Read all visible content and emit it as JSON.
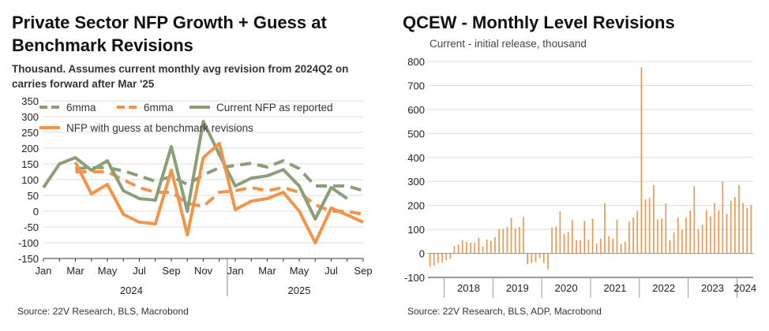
{
  "left": {
    "title": "Private Sector NFP Growth + Guess at Benchmark Revisions",
    "subtitle": "Thousand. Assumes current monthly avg revision from 2024Q2 on carries forward after Mar '25",
    "source": "Source: 22V Research, BLS, Macrobond"
  },
  "right": {
    "title": "QCEW - Monthly Level Revisions",
    "subtitle": "Current - initial release, thousand",
    "source": "Source: 22V Research, BLS, ADP, Macrobond"
  },
  "colors": {
    "green": "#8a9e78",
    "orange": "#f2954a",
    "grid": "#dcdcdc",
    "axis": "#333333"
  },
  "chart_data": [
    {
      "type": "line",
      "x": [
        "2024-01",
        "2024-02",
        "2024-03",
        "2024-04",
        "2024-05",
        "2024-06",
        "2024-07",
        "2024-08",
        "2024-09",
        "2024-10",
        "2024-11",
        "2024-12",
        "2025-01",
        "2025-02",
        "2025-03",
        "2025-04",
        "2025-05",
        "2025-06",
        "2025-07",
        "2025-08",
        "2025-09"
      ],
      "x_ticks": [
        "Jan",
        "Mar",
        "May",
        "Jul",
        "Sep",
        "Nov",
        "Jan",
        "Mar",
        "May",
        "Jul",
        "Sep"
      ],
      "x_tick_months": [
        "2024-01",
        "2024-03",
        "2024-05",
        "2024-07",
        "2024-09",
        "2024-11",
        "2025-01",
        "2025-03",
        "2025-05",
        "2025-07",
        "2025-09"
      ],
      "year_labels": [
        "2024",
        "2025"
      ],
      "ylim": [
        -150,
        350
      ],
      "y_ticks": [
        350,
        300,
        250,
        200,
        150,
        100,
        50,
        0,
        -50,
        -100,
        -150
      ],
      "legend": [
        "6mma",
        "6mma",
        "Current NFP as reported",
        "NFP with guess at benchmark revisions"
      ],
      "legend_position": "top",
      "grid": true,
      "series": [
        {
          "name": "Current NFP as reported",
          "style": "solid",
          "color": "green",
          "values": [
            75,
            150,
            170,
            130,
            160,
            65,
            40,
            35,
            205,
            0,
            285,
            180,
            80,
            105,
            112,
            132,
            80,
            -25,
            75,
            40,
            null
          ]
        },
        {
          "name": "NFP with guess at benchmark revisions",
          "style": "solid",
          "color": "orange",
          "values": [
            null,
            null,
            155,
            55,
            85,
            -10,
            -35,
            -40,
            130,
            -75,
            170,
            215,
            5,
            32,
            40,
            60,
            0,
            -100,
            10,
            -12,
            -35
          ]
        },
        {
          "name": "6mma",
          "style": "dashed",
          "color": "green",
          "values": [
            null,
            null,
            135,
            138,
            138,
            128,
            112,
            95,
            110,
            85,
            115,
            138,
            145,
            152,
            140,
            160,
            135,
            80,
            80,
            80,
            65
          ]
        },
        {
          "name": "6mma",
          "style": "dashed",
          "color": "orange",
          "values": [
            118,
            null,
            125,
            125,
            125,
            100,
            75,
            60,
            60,
            25,
            15,
            60,
            65,
            75,
            65,
            75,
            60,
            20,
            0,
            0,
            -10
          ]
        }
      ]
    },
    {
      "type": "bar",
      "ylim": [
        -100,
        800
      ],
      "y_ticks": [
        800,
        700,
        600,
        500,
        400,
        300,
        200,
        100,
        0,
        -100
      ],
      "x_ticks": [
        "2018",
        "2019",
        "2020",
        "2021",
        "2022",
        "2023",
        "2024"
      ],
      "grid": true,
      "series": [
        {
          "name": "",
          "color": "orange",
          "start_month": "2017-09",
          "values": [
            -55,
            -52,
            -40,
            -38,
            -28,
            -22,
            32,
            37,
            55,
            48,
            45,
            45,
            65,
            30,
            58,
            52,
            68,
            102,
            102,
            110,
            148,
            105,
            110,
            152,
            -45,
            -40,
            -35,
            -20,
            -40,
            -65,
            108,
            112,
            175,
            80,
            90,
            140,
            55,
            55,
            135,
            58,
            145,
            42,
            62,
            210,
            72,
            62,
            140,
            38,
            48,
            132,
            150,
            178,
            775,
            225,
            230,
            285,
            142,
            145,
            208,
            55,
            88,
            150,
            100,
            150,
            178,
            280,
            100,
            120,
            180,
            155,
            210,
            180,
            300,
            165,
            220,
            235,
            285,
            210,
            190,
            200
          ]
        }
      ]
    }
  ]
}
